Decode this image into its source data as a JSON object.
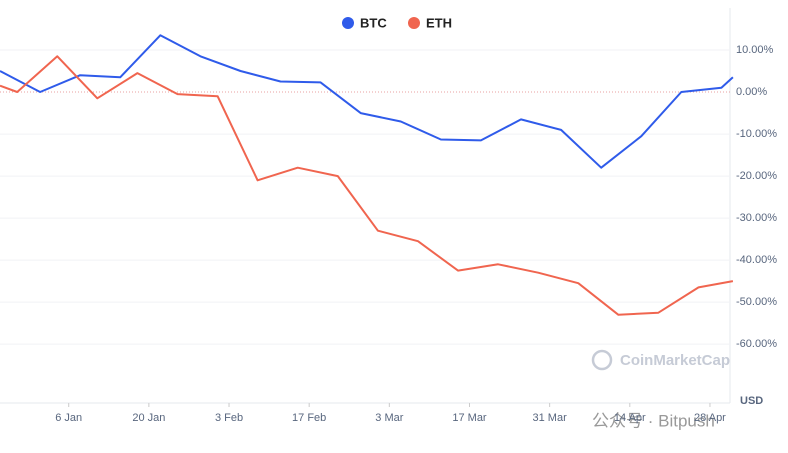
{
  "chart_data": {
    "type": "line",
    "series": [
      {
        "name": "BTC",
        "color": "#2f5bea",
        "x": [
          -6,
          1,
          8,
          15,
          22,
          29,
          36,
          43,
          50,
          57,
          64,
          71,
          78,
          85,
          92,
          99,
          106,
          113,
          120,
          122
        ],
        "values": [
          5,
          0,
          4,
          3.5,
          13.5,
          8.5,
          5,
          2.5,
          2.3,
          -5,
          -7,
          -11.3,
          -11.5,
          -6.5,
          -9,
          -18,
          -10.5,
          0,
          1,
          3.5
        ]
      },
      {
        "name": "ETH",
        "color": "#f0654f",
        "x": [
          -6,
          -3,
          4,
          11,
          18,
          25,
          32,
          39,
          46,
          53,
          60,
          67,
          74,
          81,
          88,
          95,
          102,
          109,
          116,
          122
        ],
        "values": [
          1.5,
          0,
          8.5,
          -1.5,
          4.5,
          -0.5,
          -1,
          -21,
          -18,
          -20,
          -33,
          -35.5,
          -42.5,
          -41,
          -43,
          -45.5,
          -53,
          -52.5,
          -46.5,
          -45
        ]
      }
    ],
    "xlim": [
      -6,
      121.5
    ],
    "xticks": [
      {
        "value": 6,
        "label": "6 Jan"
      },
      {
        "value": 20,
        "label": "20 Jan"
      },
      {
        "value": 34,
        "label": "3 Feb"
      },
      {
        "value": 48,
        "label": "17 Feb"
      },
      {
        "value": 62,
        "label": "3 Mar"
      },
      {
        "value": 76,
        "label": "17 Mar"
      },
      {
        "value": 90,
        "label": "31 Mar"
      },
      {
        "value": 104,
        "label": "14 Apr"
      },
      {
        "value": 118,
        "label": "28 Apr"
      }
    ],
    "ylim": [
      -74,
      20
    ],
    "yticks": [
      {
        "value": 10,
        "label": "10.00%"
      },
      {
        "value": 0,
        "label": "0.00%"
      },
      {
        "value": -10,
        "label": "-10.00%"
      },
      {
        "value": -20,
        "label": "-20.00%"
      },
      {
        "value": -30,
        "label": "-30.00%"
      },
      {
        "value": -40,
        "label": "-40.00%"
      },
      {
        "value": -50,
        "label": "-50.00%"
      },
      {
        "value": -60,
        "label": "-60.00%"
      }
    ],
    "y_unit": "USD",
    "watermark": "CoinMarketCap",
    "source_watermark": "公众号 · Bitpush",
    "grid": true
  }
}
